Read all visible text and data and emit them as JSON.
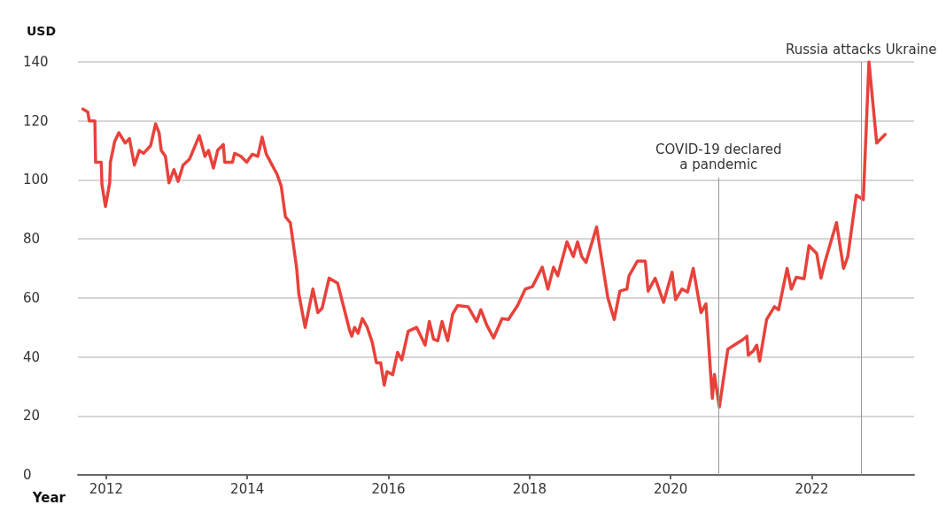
{
  "chart_data": {
    "type": "line",
    "xlabel": "Year",
    "ylabel": "USD",
    "x": [
      2011.67,
      2011.74,
      2011.76,
      2011.84,
      2011.85,
      2011.93,
      2011.94,
      2011.99,
      2012.05,
      2012.06,
      2012.12,
      2012.18,
      2012.27,
      2012.33,
      2012.4,
      2012.47,
      2012.53,
      2012.63,
      2012.7,
      2012.75,
      2012.78,
      2012.84,
      2012.89,
      2012.96,
      2013.02,
      2013.09,
      2013.18,
      2013.32,
      2013.4,
      2013.45,
      2013.52,
      2013.58,
      2013.66,
      2013.68,
      2013.79,
      2013.82,
      2013.91,
      2013.99,
      2014.07,
      2014.15,
      2014.21,
      2014.27,
      2014.33,
      2014.42,
      2014.48,
      2014.54,
      2014.61,
      2014.7,
      2014.73,
      2014.82,
      2014.93,
      2015.0,
      2015.06,
      2015.16,
      2015.28,
      2015.45,
      2015.48,
      2015.52,
      2015.57,
      2015.63,
      2015.7,
      2015.77,
      2015.83,
      2015.89,
      2015.94,
      2015.98,
      2016.06,
      2016.13,
      2016.19,
      2016.28,
      2016.4,
      2016.52,
      2016.58,
      2016.64,
      2016.7,
      2016.76,
      2016.84,
      2016.91,
      2016.98,
      2017.13,
      2017.25,
      2017.31,
      2017.39,
      2017.49,
      2017.61,
      2017.7,
      2017.83,
      2017.94,
      2018.04,
      2018.18,
      2018.26,
      2018.34,
      2018.4,
      2018.53,
      2018.62,
      2018.68,
      2018.74,
      2018.8,
      2018.95,
      2019.11,
      2019.2,
      2019.28,
      2019.38,
      2019.41,
      2019.53,
      2019.64,
      2019.68,
      2019.78,
      2019.9,
      2020.02,
      2020.07,
      2020.16,
      2020.24,
      2020.32,
      2020.43,
      2020.5,
      2020.59,
      2020.62,
      2020.69,
      2020.81,
      2020.9,
      2021.02,
      2021.08,
      2021.1,
      2021.17,
      2021.22,
      2021.26,
      2021.36,
      2021.47,
      2021.53,
      2021.65,
      2021.71,
      2021.78,
      2021.89,
      2021.96,
      2022.07,
      2022.13,
      2022.19,
      2022.35,
      2022.45,
      2022.51,
      2022.63,
      2022.73,
      2022.81,
      2022.92,
      2023.04
    ],
    "series": [
      {
        "color": "#e8423b",
        "values": [
          124,
          123,
          120,
          120,
          106,
          106,
          98.5,
          91,
          99,
          106,
          113,
          116,
          112.5,
          114,
          105,
          110,
          109,
          111.6,
          119,
          116,
          110,
          108,
          99,
          103.5,
          99.5,
          105,
          107,
          115,
          108,
          110,
          104,
          110,
          112,
          106,
          106,
          109,
          108,
          106,
          108.7,
          108,
          114.5,
          108.7,
          106,
          102,
          98,
          87.5,
          85.5,
          70,
          61.4,
          50,
          63,
          55,
          56.5,
          66.7,
          65,
          49,
          47,
          50,
          48,
          53,
          50,
          45,
          38,
          38,
          30.4,
          35,
          34,
          41.5,
          39,
          48.7,
          50,
          44,
          52,
          46,
          45.5,
          52,
          45.5,
          54.5,
          57.4,
          57,
          52,
          56,
          51,
          46.4,
          53,
          52.7,
          57.4,
          63,
          63.8,
          70.4,
          63,
          70.4,
          67.5,
          79,
          74,
          79,
          74,
          72,
          84,
          60,
          52.7,
          62.3,
          63,
          67.5,
          72.5,
          72.5,
          62.3,
          66.7,
          58.5,
          68.7,
          59.4,
          63,
          62,
          70,
          55,
          58,
          26,
          34,
          23,
          42.6,
          44,
          45.8,
          47,
          40.6,
          42,
          44,
          38.5,
          52.7,
          57,
          56,
          70,
          63,
          67,
          66.5,
          77.7,
          75,
          66.7,
          72.5,
          85.5,
          70,
          74,
          94.8,
          93.3,
          140,
          112.5,
          115.4
        ]
      }
    ],
    "xlim": [
      2011.6,
      2023.45
    ],
    "xticks": [
      2012,
      2014,
      2016,
      2018,
      2020,
      2022
    ],
    "ylim": [
      0,
      140
    ],
    "yticks": [
      0,
      20,
      40,
      60,
      80,
      100,
      120,
      140
    ],
    "grid": "y",
    "marker": "none",
    "line_style": "solid",
    "ref_lines": [
      {
        "axis": "x",
        "value": 2020.68,
        "label": "COVID-19 declared\na pandemic",
        "color": "#999999"
      },
      {
        "axis": "x",
        "value": 2022.7,
        "label": "Russia attacks Ukraine",
        "color": "#999999"
      }
    ]
  }
}
